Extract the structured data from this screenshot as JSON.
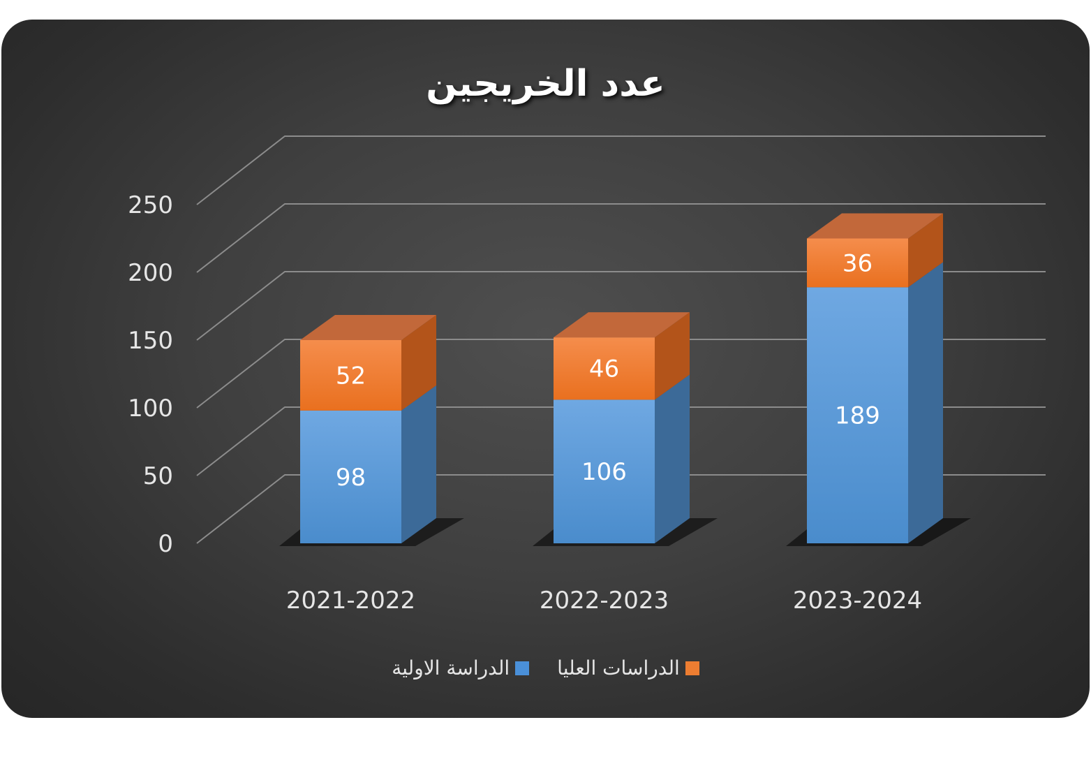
{
  "chart_data": {
    "type": "bar",
    "stacked": true,
    "three_d": true,
    "title": "عدد الخريجين",
    "categories": [
      "2021-2022",
      "2022-2023",
      "2023-2024"
    ],
    "series": [
      {
        "name": "الدراسة الاولية",
        "values": [
          98,
          106,
          189
        ],
        "color": "#5b9bd5"
      },
      {
        "name": "الدراسات العليا",
        "values": [
          52,
          46,
          36
        ],
        "color": "#ed7d31"
      }
    ],
    "yticks": [
      0,
      50,
      100,
      150,
      200,
      250
    ],
    "ylim": [
      0,
      250
    ],
    "grid": true,
    "legend": "bottom"
  },
  "colors": {
    "background": "#3a3a3a",
    "gridline": "#8c8c8c",
    "text": "#e6e6e6"
  }
}
